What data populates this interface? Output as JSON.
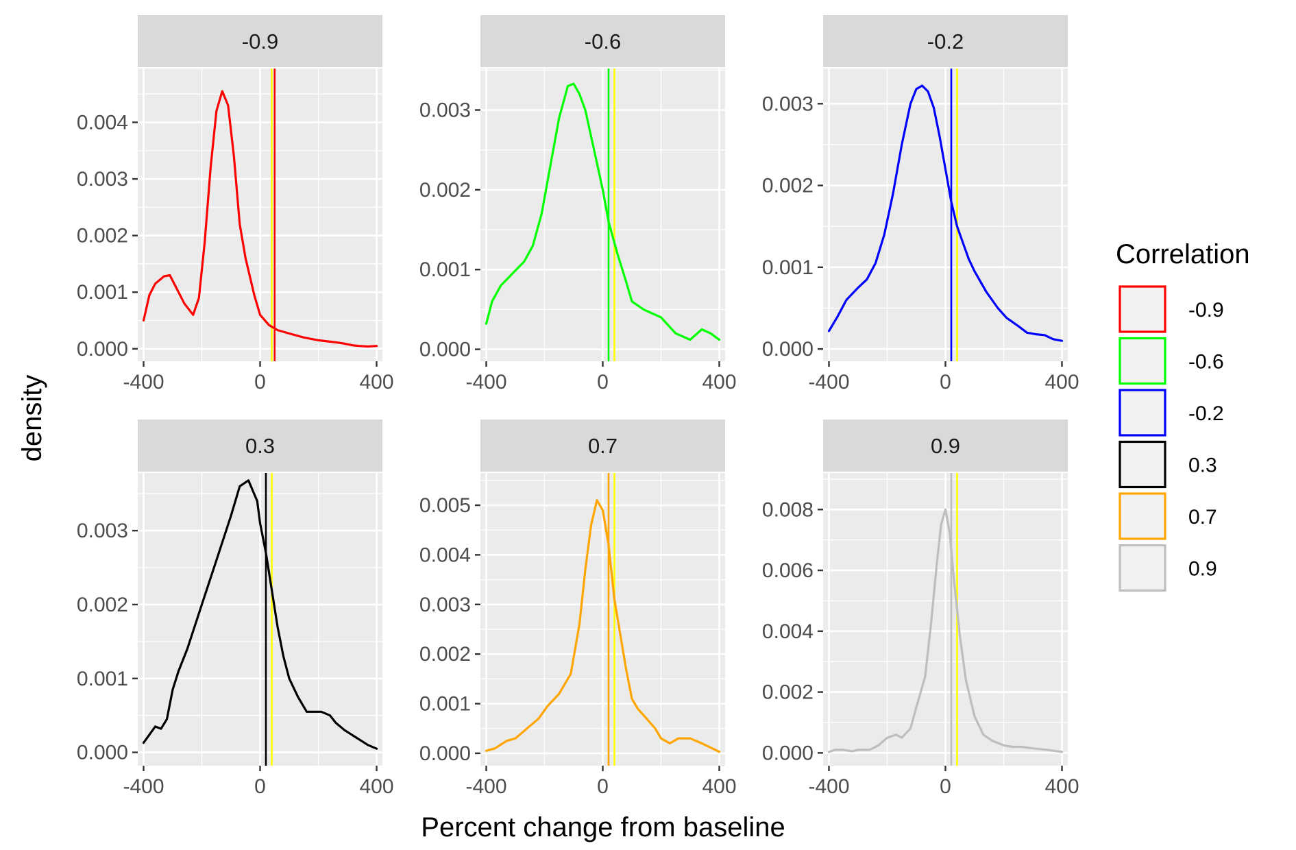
{
  "chart_data": {
    "type": "area",
    "xlabel": "Percent change from baseline",
    "ylabel": "density",
    "legend": {
      "title": "Correlation",
      "placement": "right",
      "entries": [
        {
          "label": "-0.9",
          "color": "#ff0000"
        },
        {
          "label": "-0.6",
          "color": "#00ff00"
        },
        {
          "label": "-0.2",
          "color": "#0000ff"
        },
        {
          "label": "0.3",
          "color": "#000000"
        },
        {
          "label": "0.7",
          "color": "#ffa500"
        },
        {
          "label": "0.9",
          "color": "#bebebe"
        }
      ]
    },
    "reference_line_color": "#ffff00",
    "reference_x": 40,
    "xlim": [
      -420,
      420
    ],
    "x_ticks": [
      -400,
      0,
      400
    ],
    "x_tick_labels": [
      "-400",
      "0",
      "400"
    ],
    "grid": true,
    "panels": [
      {
        "strip": "-0.9",
        "color": "#ff0000",
        "ylim": [
          -0.00022,
          0.00495
        ],
        "y_ticks": [
          0,
          0.001,
          0.002,
          0.003,
          0.004
        ],
        "y_tick_labels": [
          "0.000",
          "0.001",
          "0.002",
          "0.003",
          "0.004"
        ],
        "mean_line": 50,
        "x": [
          -400,
          -380,
          -360,
          -330,
          -310,
          -290,
          -260,
          -230,
          -210,
          -190,
          -170,
          -150,
          -130,
          -110,
          -90,
          -70,
          -50,
          -20,
          0,
          30,
          60,
          100,
          150,
          200,
          250,
          280,
          300,
          320,
          340,
          370,
          400
        ],
        "y": [
          0.0005,
          0.00095,
          0.00115,
          0.00128,
          0.0013,
          0.0011,
          0.0008,
          0.0006,
          0.0009,
          0.0019,
          0.0032,
          0.0042,
          0.00455,
          0.0043,
          0.0034,
          0.0022,
          0.0016,
          0.00095,
          0.0006,
          0.00042,
          0.00033,
          0.00027,
          0.0002,
          0.00015,
          0.00012,
          0.0001,
          8e-05,
          6e-05,
          5e-05,
          4e-05,
          5e-05
        ]
      },
      {
        "strip": "-0.6",
        "color": "#00ff00",
        "ylim": [
          -0.00015,
          0.00352
        ],
        "y_ticks": [
          0,
          0.001,
          0.002,
          0.003
        ],
        "y_tick_labels": [
          "0.000",
          "0.001",
          "0.002",
          "0.003"
        ],
        "mean_line": 20,
        "x": [
          -400,
          -380,
          -350,
          -310,
          -270,
          -240,
          -210,
          -180,
          -150,
          -120,
          -100,
          -80,
          -60,
          -30,
          0,
          20,
          50,
          80,
          100,
          140,
          200,
          250,
          300,
          340,
          370,
          400
        ],
        "y": [
          0.00032,
          0.0006,
          0.0008,
          0.00095,
          0.0011,
          0.0013,
          0.0017,
          0.0023,
          0.0029,
          0.0033,
          0.00333,
          0.0032,
          0.003,
          0.0025,
          0.002,
          0.0016,
          0.0012,
          0.00085,
          0.0006,
          0.0005,
          0.0004,
          0.0002,
          0.00012,
          0.00025,
          0.0002,
          0.00012
        ]
      },
      {
        "strip": "-0.2",
        "color": "#0000ff",
        "ylim": [
          -0.00015,
          0.00343
        ],
        "y_ticks": [
          0,
          0.001,
          0.002,
          0.003
        ],
        "y_tick_labels": [
          "0.000",
          "0.001",
          "0.002",
          "0.003"
        ],
        "mean_line": 20,
        "x": [
          -400,
          -370,
          -340,
          -300,
          -270,
          -240,
          -210,
          -180,
          -150,
          -120,
          -100,
          -80,
          -60,
          -40,
          -20,
          0,
          20,
          40,
          60,
          80,
          100,
          140,
          180,
          210,
          250,
          280,
          310,
          340,
          370,
          400
        ],
        "y": [
          0.00022,
          0.0004,
          0.0006,
          0.00075,
          0.00085,
          0.00105,
          0.0014,
          0.0019,
          0.0025,
          0.003,
          0.00318,
          0.00322,
          0.00315,
          0.00295,
          0.0026,
          0.0022,
          0.0018,
          0.0015,
          0.0013,
          0.0011,
          0.00095,
          0.0007,
          0.0005,
          0.00038,
          0.00028,
          0.0002,
          0.00018,
          0.00017,
          0.00012,
          0.0001
        ]
      },
      {
        "strip": "0.3",
        "color": "#000000",
        "ylim": [
          -0.00018,
          0.00378
        ],
        "y_ticks": [
          0,
          0.001,
          0.002,
          0.003
        ],
        "y_tick_labels": [
          "0.000",
          "0.001",
          "0.002",
          "0.003"
        ],
        "mean_line": 20,
        "x": [
          -400,
          -360,
          -340,
          -320,
          -300,
          -280,
          -250,
          -200,
          -150,
          -100,
          -70,
          -40,
          -10,
          0,
          20,
          40,
          60,
          80,
          100,
          130,
          160,
          190,
          210,
          240,
          260,
          290,
          330,
          370,
          400
        ],
        "y": [
          0.00013,
          0.00035,
          0.00032,
          0.00045,
          0.00085,
          0.0011,
          0.0014,
          0.002,
          0.0026,
          0.0032,
          0.0036,
          0.00368,
          0.0034,
          0.0031,
          0.0027,
          0.0022,
          0.0017,
          0.0013,
          0.001,
          0.00075,
          0.00055,
          0.00055,
          0.00055,
          0.0005,
          0.0004,
          0.0003,
          0.0002,
          0.0001,
          5e-05
        ]
      },
      {
        "strip": "0.7",
        "color": "#ffa500",
        "ylim": [
          -0.00025,
          0.00565
        ],
        "y_ticks": [
          0,
          0.001,
          0.002,
          0.003,
          0.004,
          0.005
        ],
        "y_tick_labels": [
          "0.000",
          "0.001",
          "0.002",
          "0.003",
          "0.004",
          "0.005"
        ],
        "mean_line": 20,
        "x": [
          -400,
          -370,
          -330,
          -300,
          -260,
          -220,
          -190,
          -150,
          -110,
          -80,
          -60,
          -40,
          -20,
          0,
          20,
          40,
          60,
          80,
          100,
          120,
          150,
          180,
          200,
          230,
          260,
          300,
          340,
          400
        ],
        "y": [
          5e-05,
          0.0001,
          0.00025,
          0.0003,
          0.0005,
          0.0007,
          0.00095,
          0.0012,
          0.0016,
          0.0026,
          0.0037,
          0.0046,
          0.0051,
          0.0049,
          0.0042,
          0.0031,
          0.0024,
          0.0017,
          0.0011,
          0.0009,
          0.0007,
          0.0005,
          0.0003,
          0.0002,
          0.0003,
          0.0003,
          0.0002,
          3e-05
        ]
      },
      {
        "strip": "0.9",
        "color": "#bebebe",
        "ylim": [
          -0.00042,
          0.0092
        ],
        "y_ticks": [
          0,
          0.002,
          0.004,
          0.006,
          0.008
        ],
        "y_tick_labels": [
          "0.000",
          "0.002",
          "0.004",
          "0.006",
          "0.008"
        ],
        "mean_line": 20,
        "x": [
          -400,
          -380,
          -350,
          -320,
          -300,
          -260,
          -230,
          -200,
          -170,
          -150,
          -120,
          -100,
          -70,
          -50,
          -30,
          -15,
          0,
          15,
          30,
          50,
          70,
          100,
          130,
          160,
          200,
          230,
          260,
          300,
          350,
          400
        ],
        "y": [
          3e-05,
          0.0001,
          0.0001,
          5e-05,
          0.0001,
          0.0001,
          0.00025,
          0.0005,
          0.0006,
          0.0005,
          0.0008,
          0.0015,
          0.0025,
          0.0042,
          0.0062,
          0.0075,
          0.008,
          0.0072,
          0.0056,
          0.0038,
          0.0024,
          0.0012,
          0.0006,
          0.0004,
          0.00025,
          0.0002,
          0.0002,
          0.00015,
          0.0001,
          3e-05
        ]
      }
    ]
  }
}
